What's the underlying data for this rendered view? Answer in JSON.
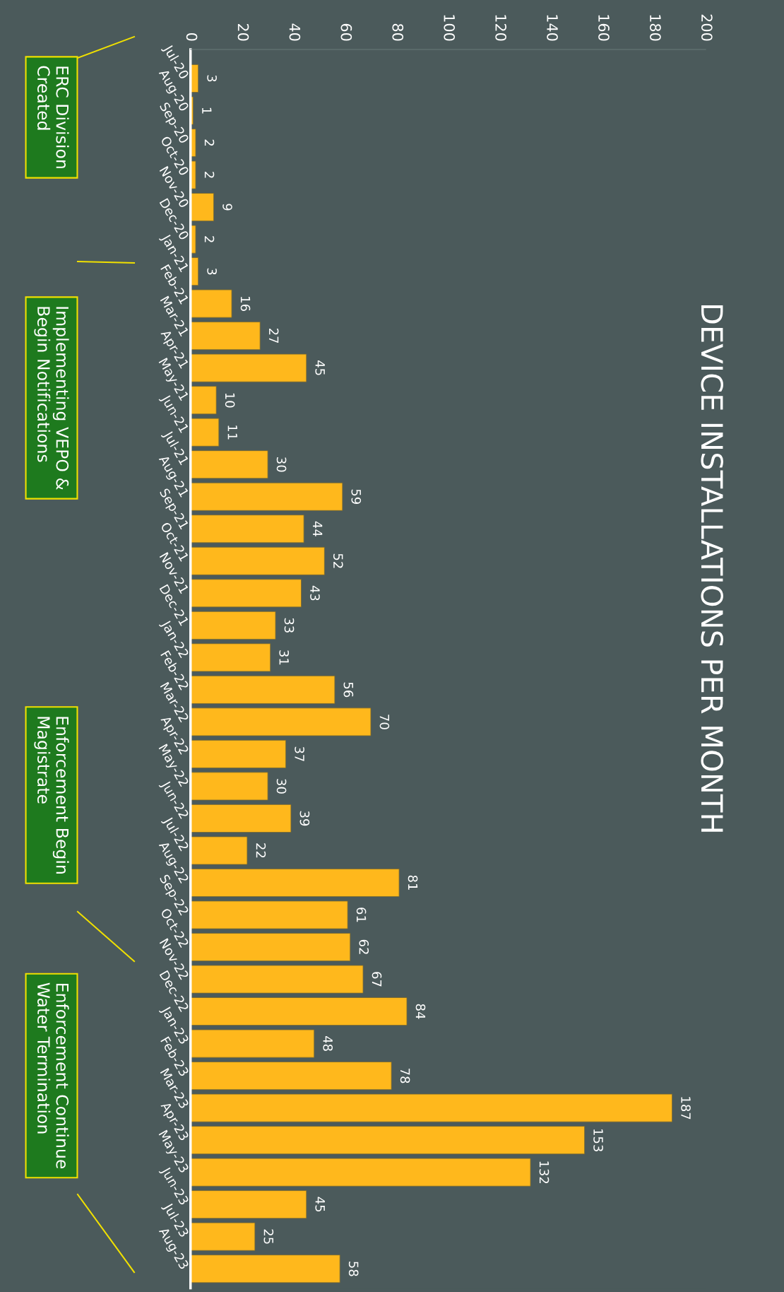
{
  "chart_data": {
    "type": "bar",
    "orientation": "horizontal",
    "title": "DEVICE INSTALLATIONS PER MONTH",
    "categories": [
      "Jul-20",
      "Aug-20",
      "Sep-20",
      "Oct-20",
      "Nov-20",
      "Dec-20",
      "Jan-21",
      "Feb-21",
      "Mar-21",
      "Apr-21",
      "May-21",
      "Jun-21",
      "Jul-21",
      "Aug-21",
      "Sep-21",
      "Oct-21",
      "Nov-21",
      "Dec-21",
      "Jan-22",
      "Feb-22",
      "Mar-22",
      "Apr-22",
      "May-22",
      "Jun-22",
      "Jul-22",
      "Aug-22",
      "Sep-22",
      "Oct-22",
      "Nov-22",
      "Dec-22",
      "Jan-23",
      "Feb-23",
      "Mar-23",
      "Apr-23",
      "May-23",
      "Jun-23",
      "Jul-23",
      "Aug-23"
    ],
    "values": [
      3,
      1,
      2,
      2,
      9,
      2,
      3,
      16,
      27,
      45,
      10,
      11,
      30,
      59,
      44,
      52,
      43,
      33,
      31,
      56,
      70,
      37,
      30,
      39,
      22,
      81,
      61,
      62,
      67,
      84,
      48,
      78,
      187,
      153,
      132,
      45,
      25,
      58
    ],
    "color": "#ffb81c",
    "data_labels": true,
    "xlim": [
      0,
      200
    ],
    "xticks": [
      0,
      20,
      40,
      60,
      80,
      100,
      120,
      140,
      160,
      180,
      200
    ],
    "grid": false,
    "legend": false,
    "annotations": [
      "ERC Division\nCreated",
      "Implementing VEPO &\nBegin Notifications",
      "Enforcement Begin\nMagistrate",
      "Enforcement Continue\nWater Termination"
    ]
  }
}
